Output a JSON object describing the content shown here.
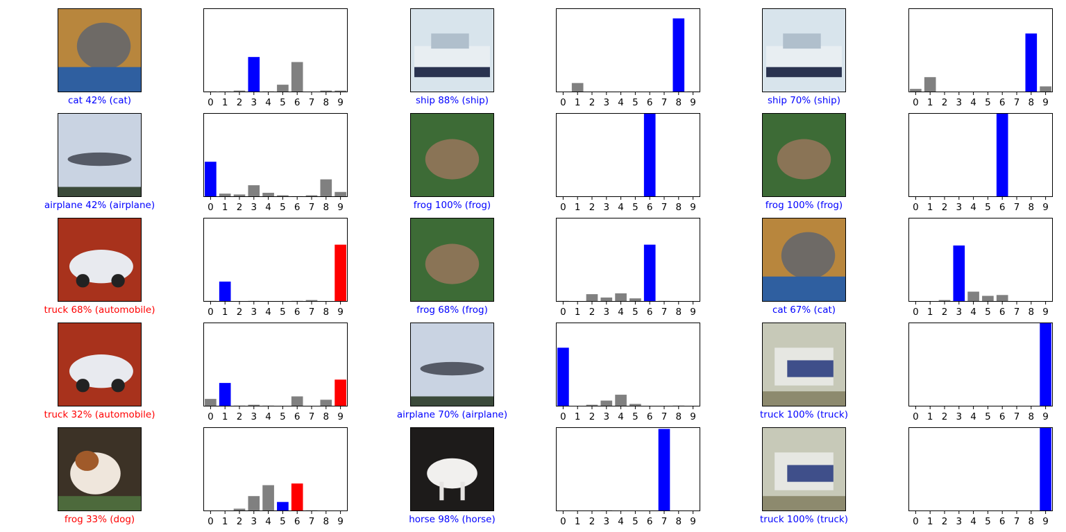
{
  "colors": {
    "predicted_correct": "#0000ff",
    "true_label_when_wrong": "#ff0000",
    "other": "#808080",
    "caption_correct": "#0000ff",
    "caption_wrong": "#ff0000"
  },
  "chart_data": [
    {
      "type": "bar",
      "panel": "row1-col1",
      "image_icon": "cat-photo-icon",
      "caption": "cat 42% (cat)",
      "correct": true,
      "predicted": 3,
      "true_label": 3,
      "categories": [
        "0",
        "1",
        "2",
        "3",
        "4",
        "5",
        "6",
        "7",
        "8",
        "9"
      ],
      "values": [
        0.01,
        0.01,
        0.02,
        0.42,
        0.01,
        0.09,
        0.36,
        0.005,
        0.02,
        0.02
      ],
      "ylim": [
        0,
        1
      ]
    },
    {
      "type": "bar",
      "panel": "row1-col2",
      "image_icon": "ship-photo-icon",
      "caption": "ship 88% (ship)",
      "correct": true,
      "predicted": 8,
      "true_label": 8,
      "categories": [
        "0",
        "1",
        "2",
        "3",
        "4",
        "5",
        "6",
        "7",
        "8",
        "9"
      ],
      "values": [
        0.0,
        0.11,
        0.0,
        0.0,
        0.0,
        0.0,
        0.0,
        0.0,
        0.88,
        0.01
      ],
      "ylim": [
        0,
        1
      ]
    },
    {
      "type": "bar",
      "panel": "row1-col3",
      "image_icon": "ship-photo-icon",
      "caption": "ship 70% (ship)",
      "correct": true,
      "predicted": 8,
      "true_label": 8,
      "categories": [
        "0",
        "1",
        "2",
        "3",
        "4",
        "5",
        "6",
        "7",
        "8",
        "9"
      ],
      "values": [
        0.04,
        0.18,
        0.0,
        0.0,
        0.0,
        0.0,
        0.0,
        0.0,
        0.7,
        0.07
      ],
      "ylim": [
        0,
        1
      ]
    },
    {
      "type": "bar",
      "panel": "row2-col1",
      "image_icon": "airplane-photo-icon",
      "caption": "airplane 42% (airplane)",
      "correct": true,
      "predicted": 0,
      "true_label": 0,
      "categories": [
        "0",
        "1",
        "2",
        "3",
        "4",
        "5",
        "6",
        "7",
        "8",
        "9"
      ],
      "values": [
        0.42,
        0.04,
        0.03,
        0.14,
        0.05,
        0.02,
        0.01,
        0.02,
        0.21,
        0.06
      ],
      "ylim": [
        0,
        1
      ]
    },
    {
      "type": "bar",
      "panel": "row2-col2",
      "image_icon": "frog-photo-icon",
      "caption": "frog 100% (frog)",
      "correct": true,
      "predicted": 6,
      "true_label": 6,
      "categories": [
        "0",
        "1",
        "2",
        "3",
        "4",
        "5",
        "6",
        "7",
        "8",
        "9"
      ],
      "values": [
        0,
        0,
        0,
        0,
        0,
        0,
        1.0,
        0,
        0,
        0
      ],
      "ylim": [
        0,
        1
      ]
    },
    {
      "type": "bar",
      "panel": "row2-col3",
      "image_icon": "frog-photo-icon",
      "caption": "frog 100% (frog)",
      "correct": true,
      "predicted": 6,
      "true_label": 6,
      "categories": [
        "0",
        "1",
        "2",
        "3",
        "4",
        "5",
        "6",
        "7",
        "8",
        "9"
      ],
      "values": [
        0,
        0,
        0,
        0,
        0,
        0,
        1.0,
        0,
        0,
        0
      ],
      "ylim": [
        0,
        1
      ]
    },
    {
      "type": "bar",
      "panel": "row3-col1",
      "image_icon": "car-photo-icon",
      "caption": "truck 68% (automobile)",
      "correct": false,
      "predicted": 9,
      "true_label": 1,
      "categories": [
        "0",
        "1",
        "2",
        "3",
        "4",
        "5",
        "6",
        "7",
        "8",
        "9"
      ],
      "values": [
        0.01,
        0.24,
        0.0,
        0.01,
        0.0,
        0.005,
        0.01,
        0.02,
        0.0,
        0.68
      ],
      "ylim": [
        0,
        1
      ]
    },
    {
      "type": "bar",
      "panel": "row3-col2",
      "image_icon": "frog-photo-icon",
      "caption": "frog 68% (frog)",
      "correct": true,
      "predicted": 6,
      "true_label": 6,
      "categories": [
        "0",
        "1",
        "2",
        "3",
        "4",
        "5",
        "6",
        "7",
        "8",
        "9"
      ],
      "values": [
        0.01,
        0.0,
        0.09,
        0.05,
        0.1,
        0.04,
        0.68,
        0.01,
        0.0,
        0.0
      ],
      "ylim": [
        0,
        1
      ]
    },
    {
      "type": "bar",
      "panel": "row3-col3",
      "image_icon": "cat-photo-icon",
      "caption": "cat 67% (cat)",
      "correct": true,
      "predicted": 3,
      "true_label": 3,
      "categories": [
        "0",
        "1",
        "2",
        "3",
        "4",
        "5",
        "6",
        "7",
        "8",
        "9"
      ],
      "values": [
        0.0,
        0.0,
        0.02,
        0.67,
        0.12,
        0.07,
        0.08,
        0.005,
        0.0,
        0.0
      ],
      "ylim": [
        0,
        1
      ]
    },
    {
      "type": "bar",
      "panel": "row4-col1",
      "image_icon": "car-photo-icon",
      "caption": "truck 32% (automobile)",
      "correct": false,
      "predicted": 9,
      "true_label": 1,
      "categories": [
        "0",
        "1",
        "2",
        "3",
        "4",
        "5",
        "6",
        "7",
        "8",
        "9"
      ],
      "values": [
        0.09,
        0.28,
        0.01,
        0.02,
        0.01,
        0.005,
        0.12,
        0.005,
        0.08,
        0.32
      ],
      "ylim": [
        0,
        1
      ]
    },
    {
      "type": "bar",
      "panel": "row4-col2",
      "image_icon": "airplane-photo-icon",
      "caption": "airplane 70% (airplane)",
      "correct": true,
      "predicted": 0,
      "true_label": 0,
      "categories": [
        "0",
        "1",
        "2",
        "3",
        "4",
        "5",
        "6",
        "7",
        "8",
        "9"
      ],
      "values": [
        0.7,
        0.0,
        0.02,
        0.07,
        0.14,
        0.03,
        0.0,
        0.0,
        0.01,
        0.0
      ],
      "ylim": [
        0,
        1
      ]
    },
    {
      "type": "bar",
      "panel": "row4-col3",
      "image_icon": "truck-photo-icon",
      "caption": "truck 100% (truck)",
      "correct": true,
      "predicted": 9,
      "true_label": 9,
      "categories": [
        "0",
        "1",
        "2",
        "3",
        "4",
        "5",
        "6",
        "7",
        "8",
        "9"
      ],
      "values": [
        0,
        0,
        0,
        0,
        0,
        0,
        0,
        0,
        0,
        1.0
      ],
      "ylim": [
        0,
        1
      ]
    },
    {
      "type": "bar",
      "panel": "row5-col1",
      "image_icon": "dog-photo-icon",
      "caption": "frog 33% (dog)",
      "correct": false,
      "predicted": 6,
      "true_label": 5,
      "categories": [
        "0",
        "1",
        "2",
        "3",
        "4",
        "5",
        "6",
        "7",
        "8",
        "9"
      ],
      "values": [
        0.0,
        0.0,
        0.03,
        0.18,
        0.31,
        0.11,
        0.33,
        0.01,
        0.0,
        0.0
      ],
      "ylim": [
        0,
        1
      ]
    },
    {
      "type": "bar",
      "panel": "row5-col2",
      "image_icon": "horse-photo-icon",
      "caption": "horse 98% (horse)",
      "correct": true,
      "predicted": 7,
      "true_label": 7,
      "categories": [
        "0",
        "1",
        "2",
        "3",
        "4",
        "5",
        "6",
        "7",
        "8",
        "9"
      ],
      "values": [
        0,
        0,
        0,
        0.01,
        0,
        0.005,
        0,
        0.98,
        0,
        0
      ],
      "ylim": [
        0,
        1
      ]
    },
    {
      "type": "bar",
      "panel": "row5-col3",
      "image_icon": "truck-photo-icon",
      "caption": "truck 100% (truck)",
      "correct": true,
      "predicted": 9,
      "true_label": 9,
      "categories": [
        "0",
        "1",
        "2",
        "3",
        "4",
        "5",
        "6",
        "7",
        "8",
        "9"
      ],
      "values": [
        0,
        0,
        0,
        0,
        0,
        0,
        0,
        0,
        0,
        1.0
      ],
      "ylim": [
        0,
        1
      ]
    }
  ]
}
